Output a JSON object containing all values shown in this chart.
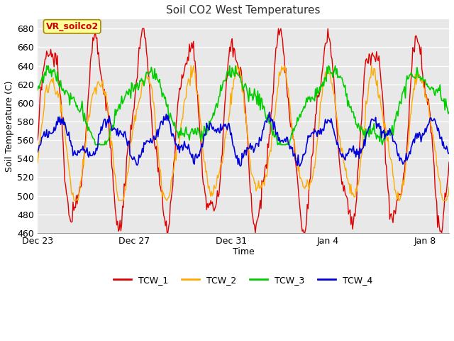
{
  "title": "Soil CO2 West Temperatures",
  "xlabel": "Time",
  "ylabel": "Soil Temperature (C)",
  "ylim": [
    460,
    690
  ],
  "yticks": [
    460,
    480,
    500,
    520,
    540,
    560,
    580,
    600,
    620,
    640,
    660,
    680
  ],
  "fig_bg_color": "#ffffff",
  "plot_bg_color": "#e8e8e8",
  "line_colors": {
    "TCW_1": "#dd0000",
    "TCW_2": "#ffaa00",
    "TCW_3": "#00cc00",
    "TCW_4": "#0000dd"
  },
  "annotation_text": "VR_soilco2",
  "annotation_color": "#cc0000",
  "annotation_bg": "#ffff99",
  "x_tick_labels": [
    "Dec 23",
    "Dec 27",
    "Dec 31",
    "Jan 4",
    "Jan 8"
  ],
  "x_tick_positions": [
    0,
    4,
    8,
    12,
    16
  ],
  "xlim": [
    0,
    17
  ],
  "legend_labels": [
    "TCW_1",
    "TCW_2",
    "TCW_3",
    "TCW_4"
  ],
  "grid_color": "#ffffff",
  "title_fontsize": 11,
  "label_fontsize": 9,
  "tick_fontsize": 9
}
